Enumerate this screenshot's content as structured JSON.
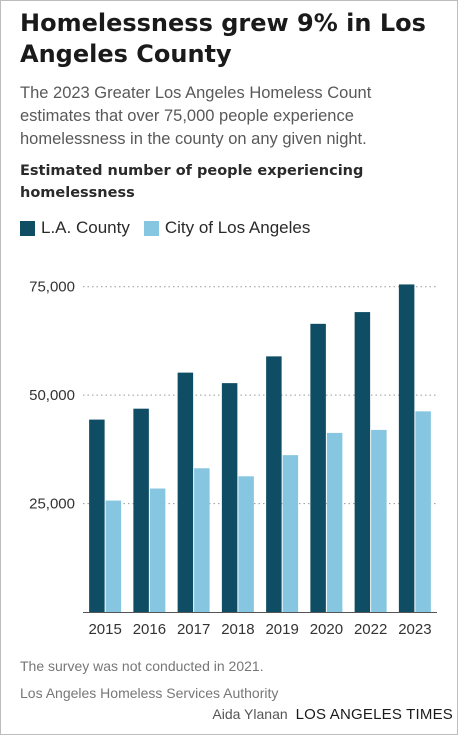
{
  "title": "Homelessness grew 9% in Los Angeles County",
  "subtitle": "The 2023 Greater Los Angeles Homeless Count estimates that over 75,000 people experience homelessness in the county on any given night.",
  "measure_label": "Estimated number of people experiencing homelessness",
  "note": "The survey was not conducted in 2021.",
  "source": "Los Angeles Homeless Services Authority",
  "credit": {
    "author": "Aida Ylanan",
    "publisher": "LOS ANGELES TIMES"
  },
  "colors": {
    "county": "#0e4d64",
    "city": "#86c6e0",
    "gridline": "#9a9a9a",
    "axis": "#555555"
  },
  "chart_data": {
    "type": "bar",
    "categories": [
      "2015",
      "2016",
      "2017",
      "2018",
      "2019",
      "2020",
      "2022",
      "2023"
    ],
    "series": [
      {
        "name": "L.A. County",
        "values": [
          44359,
          46874,
          55188,
          52765,
          58936,
          66436,
          69144,
          75518
        ]
      },
      {
        "name": "City of Los Angeles",
        "values": [
          25686,
          28464,
          33138,
          31285,
          36165,
          41290,
          41980,
          46260
        ]
      }
    ],
    "yticks": [
      25000,
      50000,
      75000
    ],
    "ytick_labels": [
      "25,000",
      "50,000",
      "75,000"
    ],
    "ylim": [
      0,
      80000
    ],
    "grid": true,
    "legend_position": "top-left"
  }
}
